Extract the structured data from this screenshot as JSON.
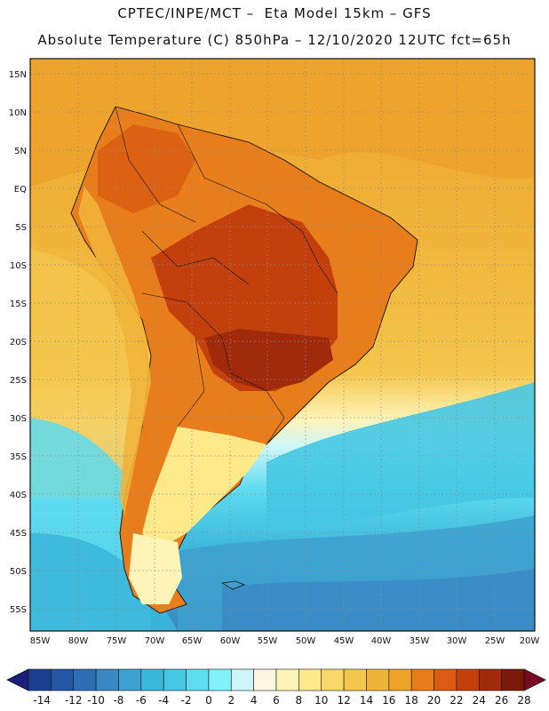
{
  "header": {
    "line1": "CPTEC/INPE/MCT –  Eta Model 15km – GFS",
    "line2": "Absolute Temperature (C) 850hPa – 12/10/2020 12UTC fct=65h"
  },
  "axes": {
    "lat_labels": [
      "15N",
      "10N",
      "5N",
      "EQ",
      "5S",
      "10S",
      "15S",
      "20S",
      "25S",
      "30S",
      "35S",
      "40S",
      "45S",
      "50S",
      "55S"
    ],
    "lon_labels": [
      "85W",
      "80W",
      "75W",
      "70W",
      "65W",
      "60W",
      "55W",
      "50W",
      "45W",
      "40W",
      "35W",
      "30W",
      "25W",
      "20W"
    ]
  },
  "colorbar": {
    "labels": [
      "-14",
      "-12",
      "-10",
      "-8",
      "-6",
      "-4",
      "-2",
      "0",
      "2",
      "4",
      "6",
      "8",
      "10",
      "12",
      "14",
      "16",
      "18",
      "20",
      "22",
      "24",
      "26",
      "28"
    ],
    "colors": [
      "#1b3f8f",
      "#2457a3",
      "#2d6fb5",
      "#3a88c4",
      "#3ea0cf",
      "#3cb6da",
      "#45c8e3",
      "#5fdcef",
      "#7ff2fb",
      "#cdf6fb",
      "#fff6e2",
      "#fff4b8",
      "#fde98a",
      "#f8d76a",
      "#f4c64c",
      "#f1b43a",
      "#eea42c",
      "#e77d1b",
      "#db5c10",
      "#c3400d",
      "#a22a0c",
      "#7a1a0a"
    ],
    "low_arrow": "#1a1f7a",
    "high_arrow": "#7a0a24"
  },
  "map": {
    "region": "South America",
    "field": "850hPa absolute temperature shaded",
    "background_warm": "#eea42c",
    "background_cold": "#4fd0e6"
  }
}
